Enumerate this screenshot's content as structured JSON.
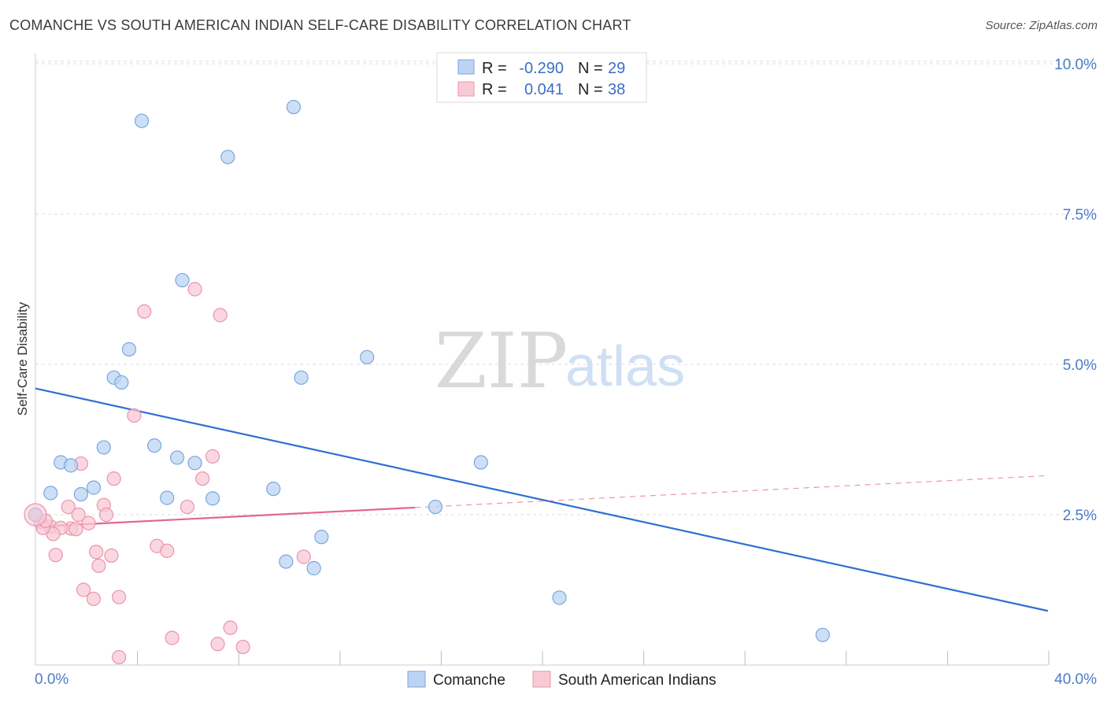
{
  "header": {
    "title": "COMANCHE VS SOUTH AMERICAN INDIAN SELF-CARE DISABILITY CORRELATION CHART",
    "source": "Source: ZipAtlas.com"
  },
  "watermark": {
    "zip": "ZIP",
    "atlas": "atlas"
  },
  "legend": {
    "r_label": "R =",
    "n_label": "N =",
    "entries": [
      {
        "name": "Comanche",
        "r": "-0.290",
        "n": "29",
        "color": "#a8c8f0"
      },
      {
        "name": "South American Indians",
        "r": "0.041",
        "n": "38",
        "color": "#f5b8c8"
      }
    ]
  },
  "colors": {
    "comanche_fill": "#bcd4f2",
    "comanche_stroke": "#7aa6e0",
    "comanche_line": "#2f6fd0",
    "sai_fill": "#f8cad6",
    "sai_stroke": "#eb93ad",
    "sai_line": "#e2668f",
    "grid": "#dddddd",
    "axis_text": "#4a7cc9"
  },
  "chart_data": {
    "type": "scatter",
    "title": "COMANCHE VS SOUTH AMERICAN INDIAN SELF-CARE DISABILITY CORRELATION CHART",
    "xlabel": "",
    "ylabel": "Self-Care Disability",
    "xlim": [
      0,
      40
    ],
    "ylim": [
      0,
      10.5
    ],
    "x_tick_labels": [
      "0.0%",
      "40.0%"
    ],
    "y_ticks": [
      2.5,
      5.0,
      7.5,
      10.0
    ],
    "y_tick_labels": [
      "2.5%",
      "5.0%",
      "7.5%",
      "10.0%"
    ],
    "grid": true,
    "legend_position": "top-center",
    "series": [
      {
        "name": "Comanche",
        "r": -0.29,
        "n": 29,
        "trend": {
          "x": [
            0,
            40
          ],
          "y": [
            4.6,
            0.9
          ],
          "dashed_from": null
        },
        "points": [
          [
            4.2,
            9.05
          ],
          [
            10.2,
            9.28
          ],
          [
            7.6,
            8.45
          ],
          [
            5.8,
            6.4
          ],
          [
            3.7,
            5.25
          ],
          [
            13.1,
            5.12
          ],
          [
            3.1,
            4.78
          ],
          [
            3.4,
            4.7
          ],
          [
            10.5,
            4.78
          ],
          [
            2.7,
            3.62
          ],
          [
            4.7,
            3.65
          ],
          [
            5.6,
            3.45
          ],
          [
            1.0,
            3.37
          ],
          [
            1.4,
            3.32
          ],
          [
            6.3,
            3.36
          ],
          [
            17.6,
            3.37
          ],
          [
            0.6,
            2.86
          ],
          [
            1.8,
            2.84
          ],
          [
            2.3,
            2.95
          ],
          [
            5.2,
            2.78
          ],
          [
            7.0,
            2.77
          ],
          [
            9.4,
            2.93
          ],
          [
            15.8,
            2.63
          ],
          [
            11.3,
            2.13
          ],
          [
            9.9,
            1.72
          ],
          [
            11.0,
            1.61
          ],
          [
            20.7,
            1.12
          ],
          [
            31.1,
            0.5
          ],
          [
            0.0,
            2.5
          ]
        ]
      },
      {
        "name": "South American Indians",
        "r": 0.041,
        "n": 38,
        "trend": {
          "x": [
            0,
            40
          ],
          "y": [
            2.3,
            3.15
          ],
          "solid_until": 15.0
        },
        "points": [
          [
            6.3,
            6.25
          ],
          [
            4.3,
            5.88
          ],
          [
            7.3,
            5.82
          ],
          [
            3.9,
            4.15
          ],
          [
            7.0,
            3.47
          ],
          [
            1.8,
            3.35
          ],
          [
            6.6,
            3.1
          ],
          [
            3.1,
            3.1
          ],
          [
            1.3,
            2.63
          ],
          [
            2.7,
            2.66
          ],
          [
            6.0,
            2.63
          ],
          [
            1.7,
            2.5
          ],
          [
            2.8,
            2.5
          ],
          [
            0.2,
            2.38
          ],
          [
            0.6,
            2.3
          ],
          [
            1.4,
            2.27
          ],
          [
            1.0,
            2.28
          ],
          [
            2.1,
            2.36
          ],
          [
            1.6,
            2.26
          ],
          [
            0.7,
            2.18
          ],
          [
            0.3,
            2.28
          ],
          [
            4.8,
            1.98
          ],
          [
            5.2,
            1.9
          ],
          [
            2.4,
            1.88
          ],
          [
            3.0,
            1.82
          ],
          [
            0.8,
            1.83
          ],
          [
            10.6,
            1.8
          ],
          [
            2.5,
            1.65
          ],
          [
            1.9,
            1.25
          ],
          [
            2.3,
            1.1
          ],
          [
            3.3,
            1.13
          ],
          [
            7.7,
            0.62
          ],
          [
            5.4,
            0.45
          ],
          [
            7.2,
            0.35
          ],
          [
            8.2,
            0.3
          ],
          [
            3.3,
            0.13
          ],
          [
            0.0,
            2.5
          ],
          [
            0.4,
            2.4
          ]
        ]
      }
    ]
  }
}
